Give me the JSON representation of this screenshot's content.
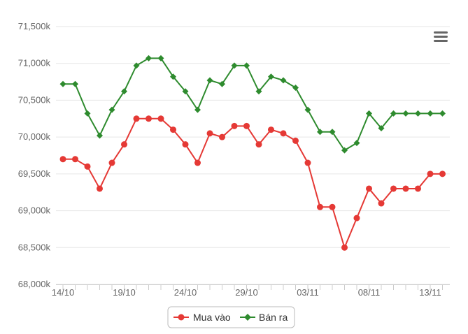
{
  "chart_data": {
    "type": "line",
    "title": "",
    "xlabel": "",
    "ylabel": "",
    "ylim": [
      68000,
      71500
    ],
    "y_ticks": [
      68000,
      68500,
      69000,
      69500,
      70000,
      70500,
      71000,
      71500
    ],
    "y_tick_labels": [
      "68,000k",
      "68,500k",
      "69,000k",
      "69,500k",
      "70,000k",
      "70,500k",
      "71,000k",
      "71,500k"
    ],
    "x_tick_labels": [
      "14/10",
      "19/10",
      "24/10",
      "29/10",
      "03/11",
      "08/11",
      "13/11"
    ],
    "x_tick_positions": [
      0,
      5,
      10,
      15,
      20,
      25,
      30
    ],
    "grid": true,
    "legend_position": "bottom-center",
    "series": [
      {
        "name": "Mua vào",
        "color": "#e53935",
        "marker": "circle",
        "values": [
          69700,
          69700,
          69600,
          69300,
          69650,
          69900,
          70250,
          70250,
          70250,
          70100,
          69900,
          69650,
          70050,
          70000,
          70150,
          70150,
          69900,
          70100,
          70050,
          69950,
          69650,
          69050,
          69050,
          68500,
          68900,
          69300,
          69100,
          69300,
          69300,
          69300,
          69500,
          69500
        ]
      },
      {
        "name": "Bán ra",
        "color": "#2e8b2e",
        "marker": "diamond",
        "values": [
          70720,
          70720,
          70320,
          70020,
          70370,
          70620,
          70970,
          71070,
          71070,
          70820,
          70620,
          70370,
          70770,
          70720,
          70970,
          70970,
          70620,
          70820,
          70770,
          70670,
          70370,
          70070,
          70070,
          69820,
          69920,
          70320,
          70120,
          70320,
          70320,
          70320,
          70320,
          70320
        ]
      }
    ]
  },
  "menu": {
    "icon": "hamburger-menu-icon"
  }
}
